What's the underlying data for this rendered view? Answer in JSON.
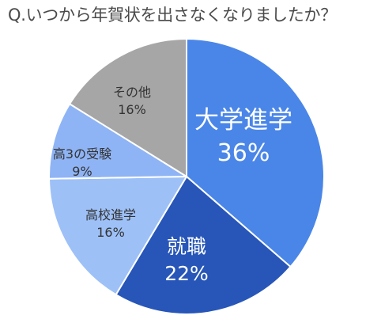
{
  "chart_data": {
    "type": "pie",
    "title": "Q.いつから年賀状を出さなくなりましたか？",
    "slices": [
      {
        "label": "大学進学",
        "value": 36,
        "value_label": "36%",
        "color": "#4a86e8"
      },
      {
        "label": "就職",
        "value": 22,
        "value_label": "22%",
        "color": "#2756b8"
      },
      {
        "label": "高校進学",
        "value": 16,
        "value_label": "16%",
        "color": "#9dc0f7"
      },
      {
        "label": "高3の受験",
        "value": 9,
        "value_label": "9%",
        "color": "#8fb4f5"
      },
      {
        "label": "その他",
        "value": 16,
        "value_label": "16%",
        "color": "#a6a6a6"
      }
    ],
    "start": "12 o'clock",
    "direction": "clockwise",
    "legend": "none"
  }
}
